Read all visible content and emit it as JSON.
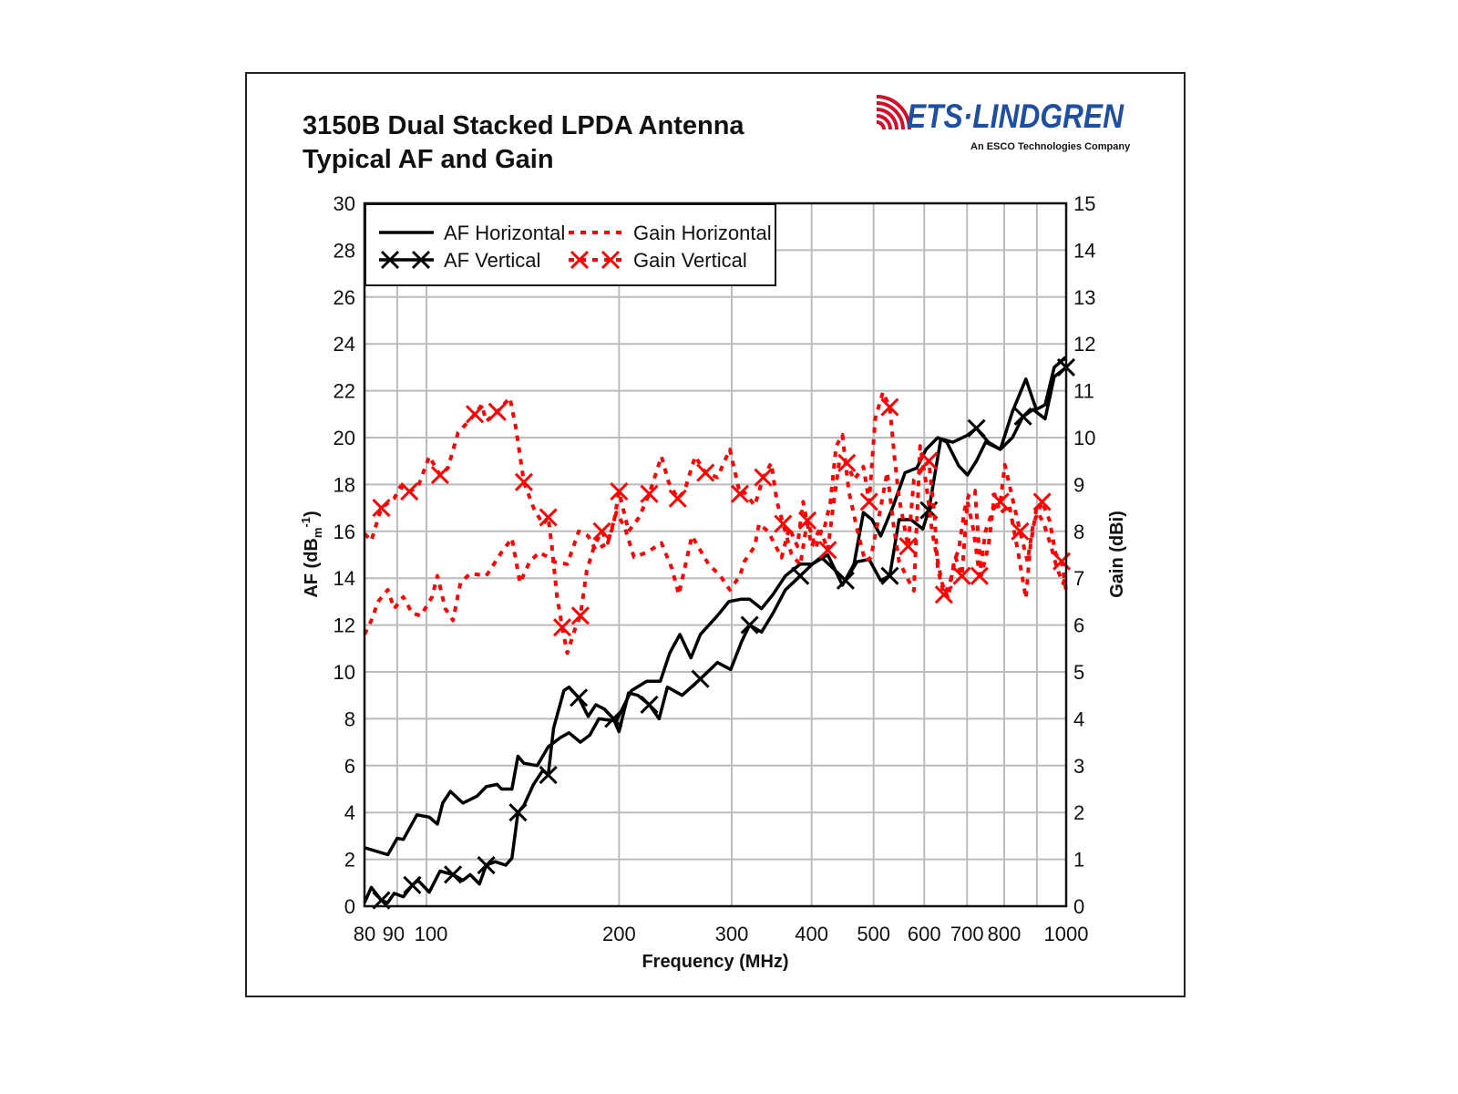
{
  "logo": {
    "brand": "ETS·LINDGREN",
    "tagline": "An ESCO Technologies Company",
    "brand_color": "#1f4fa0",
    "wave_color": "#d0102a"
  },
  "chart_data": {
    "type": "line",
    "title_line1": "3150B Dual Stacked LPDA Antenna",
    "title_line2": "Typical AF and Gain",
    "xlabel": "Frequency (MHz)",
    "ylabel_left": "AF (dB",
    "ylabel_left_sub": "m",
    "ylabel_left_sup": "-1",
    "ylabel_left_end": ")",
    "ylabel_right": "Gain (dBi)",
    "x_scale": "log",
    "xlim": [
      80,
      1000
    ],
    "ylim_left": [
      0,
      30
    ],
    "ylim_right": [
      0,
      15
    ],
    "grid": true,
    "legend_placement": "top-left",
    "x_ticks": [
      80,
      90,
      100,
      200,
      300,
      400,
      500,
      600,
      700,
      800,
      1000
    ],
    "x_grid": [
      90,
      100,
      200,
      300,
      400,
      500,
      600,
      700,
      800,
      900
    ],
    "y_ticks_left": [
      0,
      2,
      4,
      6,
      8,
      10,
      12,
      14,
      16,
      18,
      20,
      22,
      24,
      26,
      28,
      30
    ],
    "y_ticks_right": [
      0,
      1,
      2,
      3,
      4,
      5,
      6,
      7,
      8,
      9,
      10,
      11,
      12,
      13,
      14,
      15
    ],
    "colors": {
      "af": "#000000",
      "gain": "#ff0000",
      "grid": "#bbbbbb"
    },
    "series": [
      {
        "name": "AF Horizontal",
        "axis": "left",
        "style": "solid",
        "markers": false,
        "color": "#000000",
        "x": [
          80,
          87,
          90,
          92,
          96.6,
          101,
          104,
          106,
          109,
          114,
          120,
          124,
          129,
          131,
          136,
          139,
          142,
          149,
          155,
          162,
          167,
          174,
          180,
          186,
          198,
          209,
          221,
          232,
          240,
          249,
          259,
          268,
          285,
          297,
          310,
          320,
          334,
          348,
          364,
          384,
          401,
          424,
          447,
          466,
          482,
          497,
          513,
          537,
          560,
          584,
          604,
          630,
          651,
          679,
          701,
          724,
          748,
          789,
          824,
          865,
          898,
          927,
          958,
          995,
          1000
        ],
        "y": [
          2.5,
          2.2,
          2.9,
          2.85,
          3.9,
          3.8,
          3.5,
          4.4,
          4.9,
          4.4,
          4.7,
          5.1,
          5.2,
          5.0,
          5.0,
          6.4,
          6.1,
          6.0,
          6.8,
          7.2,
          7.4,
          7.0,
          7.3,
          8.0,
          7.9,
          9.2,
          9.6,
          9.6,
          10.8,
          11.6,
          10.6,
          11.6,
          12.4,
          13.0,
          13.1,
          13.1,
          12.7,
          13.3,
          14.1,
          14.6,
          14.6,
          15.0,
          13.7,
          14.6,
          16.8,
          16.5,
          15.8,
          17.1,
          18.5,
          18.7,
          19.5,
          20.0,
          19.8,
          18.8,
          18.4,
          19.0,
          19.8,
          19.5,
          21.1,
          22.5,
          21.2,
          21.4,
          23.0,
          23.4,
          23.3
        ]
      },
      {
        "name": "AF Vertical",
        "axis": "left",
        "style": "solid",
        "markers": true,
        "color": "#000000",
        "x": [
          80,
          82,
          85,
          87,
          89,
          92,
          95,
          97,
          101,
          105,
          110,
          114,
          117,
          121,
          124,
          128,
          133,
          136,
          139,
          142,
          147,
          152,
          155,
          158,
          164,
          167,
          173,
          179,
          184,
          190,
          196,
          200,
          207,
          214,
          223,
          231,
          238,
          251,
          268,
          285,
          299,
          311,
          320,
          334,
          348,
          364,
          384,
          401,
          414,
          433,
          452,
          471,
          492,
          513,
          530,
          548,
          572,
          597,
          610,
          637,
          665,
          701,
          724,
          756,
          789,
          824,
          856,
          888,
          927,
          958,
          1000
        ],
        "y": [
          0.15,
          0.8,
          0.25,
          0.15,
          0.55,
          0.4,
          0.9,
          1.1,
          0.6,
          1.5,
          1.35,
          1.1,
          1.35,
          0.95,
          1.75,
          1.9,
          1.75,
          2.05,
          4.0,
          4.3,
          5.2,
          5.8,
          5.6,
          7.6,
          9.2,
          9.35,
          8.9,
          8.1,
          8.6,
          8.4,
          8.0,
          7.45,
          9.1,
          9.0,
          8.6,
          8.0,
          9.35,
          9.0,
          9.7,
          10.4,
          10.1,
          11.3,
          12.0,
          11.7,
          12.5,
          13.5,
          14.1,
          14.6,
          14.9,
          14.4,
          13.9,
          14.7,
          14.8,
          13.9,
          14.1,
          16.5,
          16.5,
          16.1,
          16.9,
          19.95,
          19.8,
          20.1,
          20.4,
          19.8,
          19.5,
          20.0,
          20.9,
          21.2,
          20.8,
          22.6,
          23.0
        ]
      },
      {
        "name": "Gain Horizontal",
        "axis": "right",
        "style": "dashed",
        "markers": false,
        "color": "#ff0000",
        "x": [
          80,
          82,
          84,
          87,
          89,
          92,
          95,
          98,
          102,
          104,
          107,
          110,
          113,
          117,
          124,
          131,
          136,
          140,
          145,
          150,
          155,
          158,
          166,
          173,
          179,
          184,
          192,
          198,
          204,
          211,
          221,
          233,
          242,
          248,
          260,
          276,
          288,
          298,
          309,
          314,
          326,
          331,
          342,
          359,
          369,
          380,
          388,
          400,
          410,
          419,
          428,
          437,
          447,
          457,
          472,
          485,
          495,
          511,
          525,
          537,
          548,
          566,
          578,
          591,
          604,
          617,
          630,
          640,
          654,
          668,
          679,
          694,
          705,
          720,
          736,
          756,
          773,
          789,
          815,
          842,
          865,
          879,
          898,
          923,
          947,
          968,
          989,
          1000
        ],
        "y": [
          5.8,
          6.1,
          6.5,
          6.75,
          6.35,
          6.6,
          6.25,
          6.2,
          6.6,
          7.05,
          6.35,
          6.1,
          6.9,
          7.1,
          7.05,
          7.55,
          7.85,
          6.9,
          7.35,
          7.55,
          7.45,
          7.35,
          7.3,
          8.0,
          7.9,
          7.6,
          7.75,
          8.4,
          8.1,
          7.45,
          7.55,
          7.75,
          7.2,
          6.65,
          7.9,
          7.3,
          7.05,
          6.75,
          7.05,
          7.36,
          7.68,
          8.16,
          8.0,
          7.44,
          8.08,
          7.68,
          8.63,
          7.68,
          8.0,
          8.08,
          8.63,
          9.82,
          10.06,
          8.87,
          8.0,
          7.36,
          7.44,
          8.39,
          9.26,
          8.16,
          7.36,
          6.97,
          6.73,
          9.82,
          9.03,
          8.0,
          7.36,
          6.89,
          6.57,
          7.36,
          7.6,
          8.47,
          8.79,
          8.87,
          7.05,
          7.68,
          8.79,
          8.39,
          8.55,
          7.52,
          6.57,
          7.68,
          8.47,
          8.16,
          7.68,
          7.2,
          6.89,
          7.05
        ]
      },
      {
        "name": "Gain Vertical",
        "axis": "right",
        "style": "dashed",
        "markers": true,
        "color": "#ff0000",
        "x": [
          80,
          82,
          85,
          89,
          91,
          94,
          97,
          101,
          105,
          108,
          112,
          119,
          122,
          124,
          129,
          135,
          138,
          142,
          147,
          152,
          155,
          157,
          160,
          163,
          166,
          171,
          174,
          178,
          183,
          188,
          192,
          196,
          200,
          207,
          215,
          223,
          233,
          239,
          247,
          253,
          263,
          273,
          285,
          298,
          309,
          314,
          326,
          336,
          346,
          353,
          361,
          372,
          384,
          394,
          406,
          414,
          424,
          432,
          442,
          454,
          466,
          482,
          492,
          503,
          517,
          530,
          539,
          548,
          566,
          578,
          597,
          610,
          623,
          630,
          644,
          658,
          672,
          687,
          701,
          717,
          732,
          748,
          769,
          789,
          802,
          824,
          847,
          870,
          888,
          917,
          942,
          963,
          984,
          1000
        ],
        "y": [
          7.95,
          7.8,
          8.5,
          8.7,
          8.95,
          8.85,
          8.95,
          9.6,
          9.2,
          9.35,
          10.1,
          10.5,
          10.7,
          10.35,
          10.55,
          10.85,
          10.2,
          9.05,
          8.5,
          8.15,
          8.3,
          7.7,
          6.6,
          5.95,
          5.4,
          5.95,
          6.2,
          7.15,
          7.7,
          8.0,
          7.75,
          8.15,
          8.85,
          8.0,
          8.3,
          8.8,
          9.6,
          9.05,
          8.7,
          8.85,
          9.6,
          9.25,
          9.15,
          9.75,
          8.8,
          8.83,
          8.55,
          9.15,
          9.46,
          8.63,
          8.16,
          7.52,
          7.28,
          8.23,
          7.64,
          8.0,
          7.6,
          8.5,
          9.5,
          9.46,
          9.1,
          9.38,
          8.63,
          10.41,
          10.97,
          10.65,
          9.58,
          8.71,
          7.68,
          9.1,
          9.34,
          9.5,
          8.31,
          7.2,
          6.65,
          6.89,
          7.44,
          7.05,
          8.63,
          8.0,
          7.05,
          8.0,
          8.47,
          8.63,
          9.42,
          8.71,
          8.0,
          7.36,
          8.16,
          8.63,
          8.23,
          7.52,
          7.36,
          6.73
        ]
      }
    ]
  }
}
